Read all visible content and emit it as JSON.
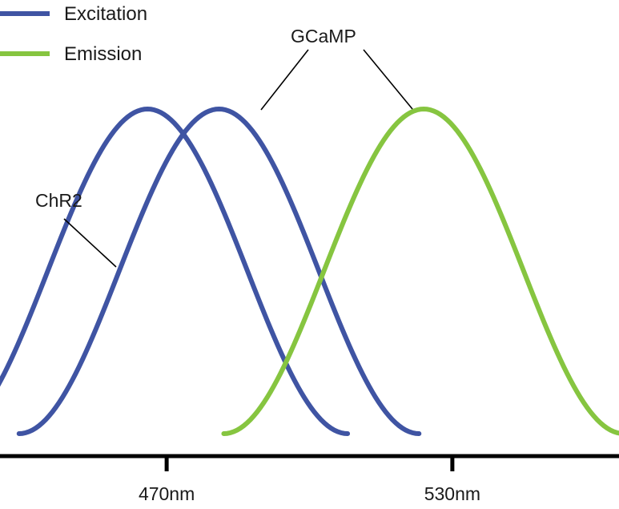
{
  "chart_data": {
    "type": "line",
    "title": "",
    "xlabel": "",
    "ylabel": "",
    "xlim": [
      435,
      565
    ],
    "ylim": [
      0,
      1
    ],
    "grid": false,
    "legend": {
      "placement": "top-left",
      "entries": [
        {
          "label": "Excitation",
          "color": "#3f54a3"
        },
        {
          "label": "Emission",
          "color": "#86c540"
        }
      ]
    },
    "x_ticks": [
      {
        "value": 470,
        "label": "470nm"
      },
      {
        "value": 530,
        "label": "530nm"
      }
    ],
    "series": [
      {
        "id": "chr2-excitation",
        "group": "Excitation",
        "color": "#3f54a3",
        "center": 466,
        "half_width": 42,
        "peak": 1
      },
      {
        "id": "gcamp-excitation",
        "group": "Excitation",
        "color": "#3f54a3",
        "center": 481,
        "half_width": 42,
        "peak": 1
      },
      {
        "id": "gcamp-emission",
        "group": "Emission",
        "color": "#86c540",
        "center": 524,
        "half_width": 42,
        "peak": 1
      }
    ],
    "annotations": [
      {
        "text": "ChR2",
        "points_to": [
          "chr2-excitation"
        ]
      },
      {
        "text": "GCaMP",
        "points_to": [
          "gcamp-excitation",
          "gcamp-emission"
        ]
      }
    ]
  }
}
